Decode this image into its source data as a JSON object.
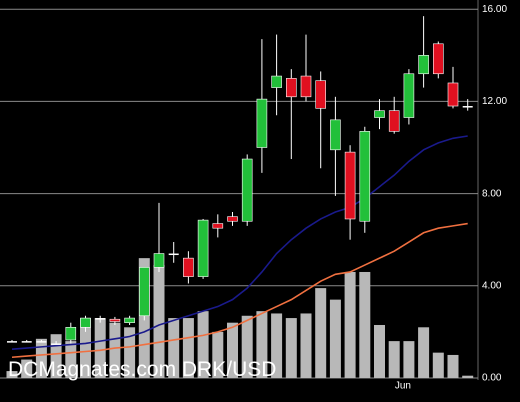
{
  "chart_data": {
    "type": "candlestick",
    "annotation": "DCMagnates.com DRK/USD",
    "categories": [
      null,
      null,
      null,
      null,
      null,
      null,
      null,
      null,
      null,
      null,
      null,
      null,
      null,
      null,
      null,
      null,
      null,
      null,
      null,
      null,
      null,
      null,
      null,
      null,
      null,
      null,
      null,
      "Jun",
      null,
      null,
      null,
      null
    ],
    "open": [
      1.6,
      1.6,
      1.6,
      1.5,
      1.65,
      2.2,
      2.6,
      2.55,
      2.4,
      2.7,
      4.8,
      5.4,
      5.2,
      4.4,
      6.7,
      7.0,
      6.8,
      10.0,
      12.6,
      13.0,
      13.1,
      12.9,
      9.9,
      9.8,
      6.8,
      11.3,
      11.6,
      11.3,
      13.2,
      14.5,
      12.8,
      11.8
    ],
    "high": [
      1.65,
      1.65,
      1.65,
      1.6,
      2.4,
      2.7,
      2.7,
      2.65,
      2.7,
      4.8,
      7.6,
      5.9,
      5.5,
      6.9,
      7.1,
      7.2,
      9.7,
      14.7,
      14.9,
      13.4,
      14.9,
      13.3,
      12.2,
      10.1,
      10.9,
      12.1,
      12.2,
      13.4,
      15.7,
      14.6,
      13.5,
      12.1
    ],
    "low": [
      1.55,
      1.55,
      1.55,
      1.45,
      1.5,
      2.0,
      2.4,
      2.3,
      2.3,
      2.5,
      4.6,
      5.0,
      4.1,
      4.3,
      6.1,
      6.6,
      6.6,
      8.9,
      11.4,
      9.5,
      12.0,
      9.1,
      7.9,
      6.0,
      6.3,
      10.8,
      10.6,
      11.0,
      12.6,
      13.0,
      11.7,
      11.6
    ],
    "close": [
      1.6,
      1.6,
      1.6,
      1.5,
      2.2,
      2.6,
      2.6,
      2.45,
      2.6,
      4.8,
      5.4,
      5.4,
      4.4,
      6.85,
      6.5,
      6.8,
      9.5,
      12.1,
      13.1,
      12.2,
      12.2,
      11.7,
      11.2,
      6.9,
      10.7,
      11.6,
      10.7,
      13.2,
      14.0,
      13.2,
      11.8,
      11.8
    ],
    "volume": [
      0.3,
      0.8,
      1.7,
      1.9,
      1.6,
      2.6,
      2.6,
      2.4,
      2.2,
      5.2,
      4.9,
      2.6,
      2.6,
      2.9,
      2.0,
      2.4,
      2.7,
      2.9,
      2.8,
      2.6,
      2.8,
      3.9,
      3.4,
      4.6,
      4.6,
      2.3,
      1.6,
      1.6,
      2.2,
      1.1,
      1.0,
      0.1
    ],
    "series": [
      {
        "color": "#1a1a8c",
        "values": [
          1.25,
          1.3,
          1.35,
          1.4,
          1.45,
          1.5,
          1.6,
          1.7,
          1.8,
          2.0,
          2.3,
          2.5,
          2.7,
          2.9,
          3.1,
          3.4,
          3.9,
          4.6,
          5.4,
          6.0,
          6.5,
          6.9,
          7.2,
          7.4,
          7.8,
          8.3,
          8.8,
          9.4,
          9.9,
          10.2,
          10.4,
          10.5
        ]
      },
      {
        "color": "#f07040",
        "values": [
          0.9,
          0.95,
          1.0,
          1.05,
          1.1,
          1.15,
          1.2,
          1.3,
          1.35,
          1.45,
          1.55,
          1.65,
          1.75,
          1.85,
          2.0,
          2.2,
          2.5,
          2.8,
          3.1,
          3.4,
          3.8,
          4.2,
          4.5,
          4.6,
          4.9,
          5.2,
          5.5,
          5.9,
          6.3,
          6.5,
          6.6,
          6.7
        ]
      }
    ],
    "up_color": "#22c03a",
    "down_color": "#e01020",
    "volume_color": "#b8b8b8",
    "ylim": [
      0,
      16.4
    ],
    "yticks": [
      {
        "value": 0,
        "label": "0.00"
      },
      {
        "value": 4,
        "label": "4.00"
      },
      {
        "value": 8,
        "label": "8.00"
      },
      {
        "value": 12,
        "label": "12.00"
      },
      {
        "value": 16,
        "label": "16.00"
      }
    ],
    "grid": true
  }
}
